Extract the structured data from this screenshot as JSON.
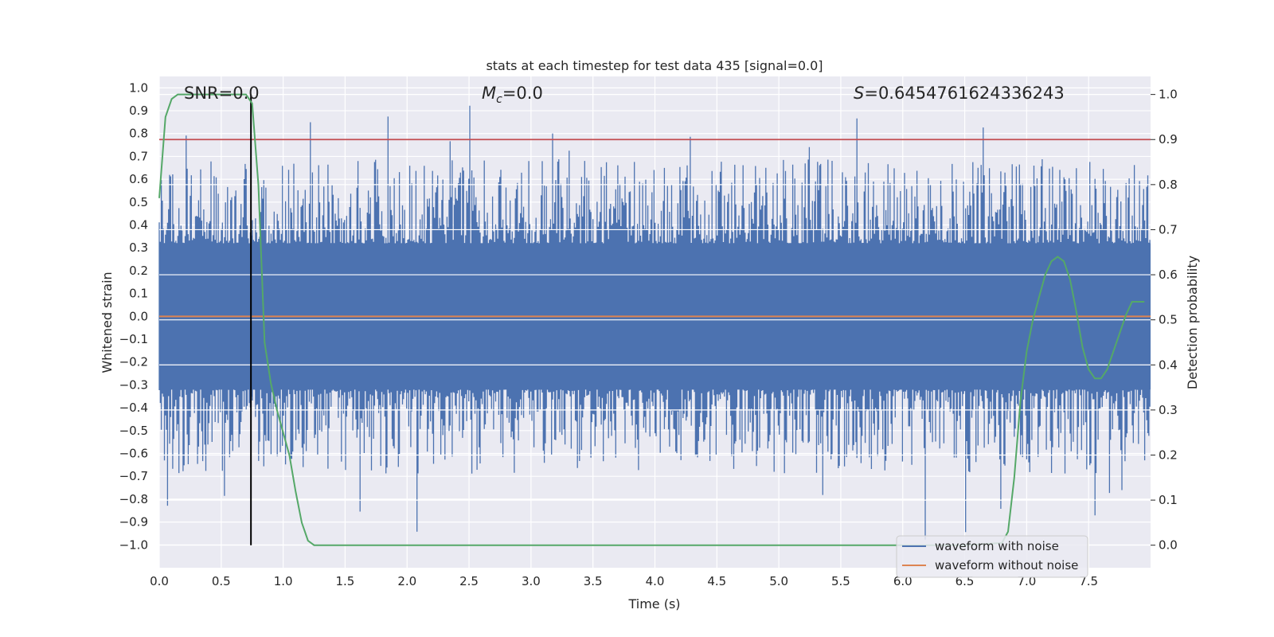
{
  "chart_data": {
    "type": "line",
    "title": "stats at each timestep for test data 435 [signal=0.0]",
    "xlabel": "Time (s)",
    "ylabel": "Whitened strain",
    "y2label": "Detection probability",
    "xlim": [
      0.0,
      8.0
    ],
    "ylim": [
      -1.1,
      1.05
    ],
    "y2lim": [
      -0.05,
      1.04
    ],
    "x_ticks": [
      "0.0",
      "0.5",
      "1.0",
      "1.5",
      "2.0",
      "2.5",
      "3.0",
      "3.5",
      "4.0",
      "4.5",
      "5.0",
      "5.5",
      "6.0",
      "6.5",
      "7.0",
      "7.5"
    ],
    "y_ticks": [
      "1.0",
      "0.9",
      "0.8",
      "0.7",
      "0.6",
      "0.5",
      "0.4",
      "0.3",
      "0.2",
      "0.1",
      "0.0",
      "−0.1",
      "−0.2",
      "−0.3",
      "−0.4",
      "−0.5",
      "−0.6",
      "−0.7",
      "−0.8",
      "−0.9",
      "−1.0"
    ],
    "y2_ticks": [
      "1.0",
      "0.9",
      "0.8",
      "0.7",
      "0.6",
      "0.5",
      "0.4",
      "0.3",
      "0.2",
      "0.1",
      "0.0"
    ],
    "annotations": {
      "snr": "SNR=0.0",
      "mc_symbol": "M",
      "mc_sub": "c",
      "mc_value": "=0.0",
      "s_symbol": "S",
      "s_value": "=0.6454761624336243"
    },
    "legend": {
      "placement": "lower-right",
      "entries": [
        "waveform with noise",
        "waveform without noise"
      ]
    },
    "grid": true,
    "threshold_probability": 0.9,
    "marker_time": 0.74,
    "noise_envelope": {
      "core_amplitude": 0.32,
      "typical_peak_amplitude": 0.55,
      "max_positive": 0.94,
      "min_negative": -1.0
    },
    "series": [
      {
        "name": "waveform with noise",
        "color": "#4c72b0",
        "axis": "left",
        "representation": "dense noise band"
      },
      {
        "name": "waveform without noise",
        "color": "#dd8452",
        "axis": "left",
        "x": [
          0.0,
          8.0
        ],
        "y": [
          0.0,
          0.0
        ]
      },
      {
        "color": "#55a868",
        "axis": "right",
        "x": [
          0.0,
          0.05,
          0.1,
          0.15,
          0.2,
          0.3,
          0.4,
          0.5,
          0.6,
          0.7,
          0.75,
          0.8,
          0.85,
          0.9,
          0.95,
          1.0,
          1.05,
          1.1,
          1.15,
          1.2,
          1.25,
          1.3,
          1.4,
          1.5,
          2.0,
          3.0,
          4.0,
          5.0,
          6.0,
          6.5,
          6.8,
          6.85,
          6.9,
          6.95,
          7.0,
          7.05,
          7.1,
          7.15,
          7.2,
          7.25,
          7.3,
          7.35,
          7.4,
          7.45,
          7.5,
          7.55,
          7.6,
          7.65,
          7.7,
          7.75,
          7.8,
          7.85,
          7.9,
          7.95
        ],
        "y": [
          0.77,
          0.95,
          0.99,
          1.0,
          1.0,
          1.0,
          1.0,
          1.0,
          1.0,
          1.0,
          0.98,
          0.8,
          0.45,
          0.36,
          0.3,
          0.25,
          0.2,
          0.12,
          0.05,
          0.01,
          0.0,
          0.0,
          0.0,
          0.0,
          0.0,
          0.0,
          0.0,
          0.0,
          0.0,
          0.0,
          0.005,
          0.03,
          0.15,
          0.32,
          0.43,
          0.5,
          0.55,
          0.6,
          0.63,
          0.64,
          0.63,
          0.59,
          0.52,
          0.44,
          0.39,
          0.37,
          0.37,
          0.39,
          0.43,
          0.47,
          0.51,
          0.54,
          0.54,
          0.54
        ]
      }
    ],
    "colors": {
      "plot_bg": "#eaeaf2",
      "grid": "#ffffff",
      "threshold": "#c44e52",
      "marker": "#000000"
    }
  }
}
